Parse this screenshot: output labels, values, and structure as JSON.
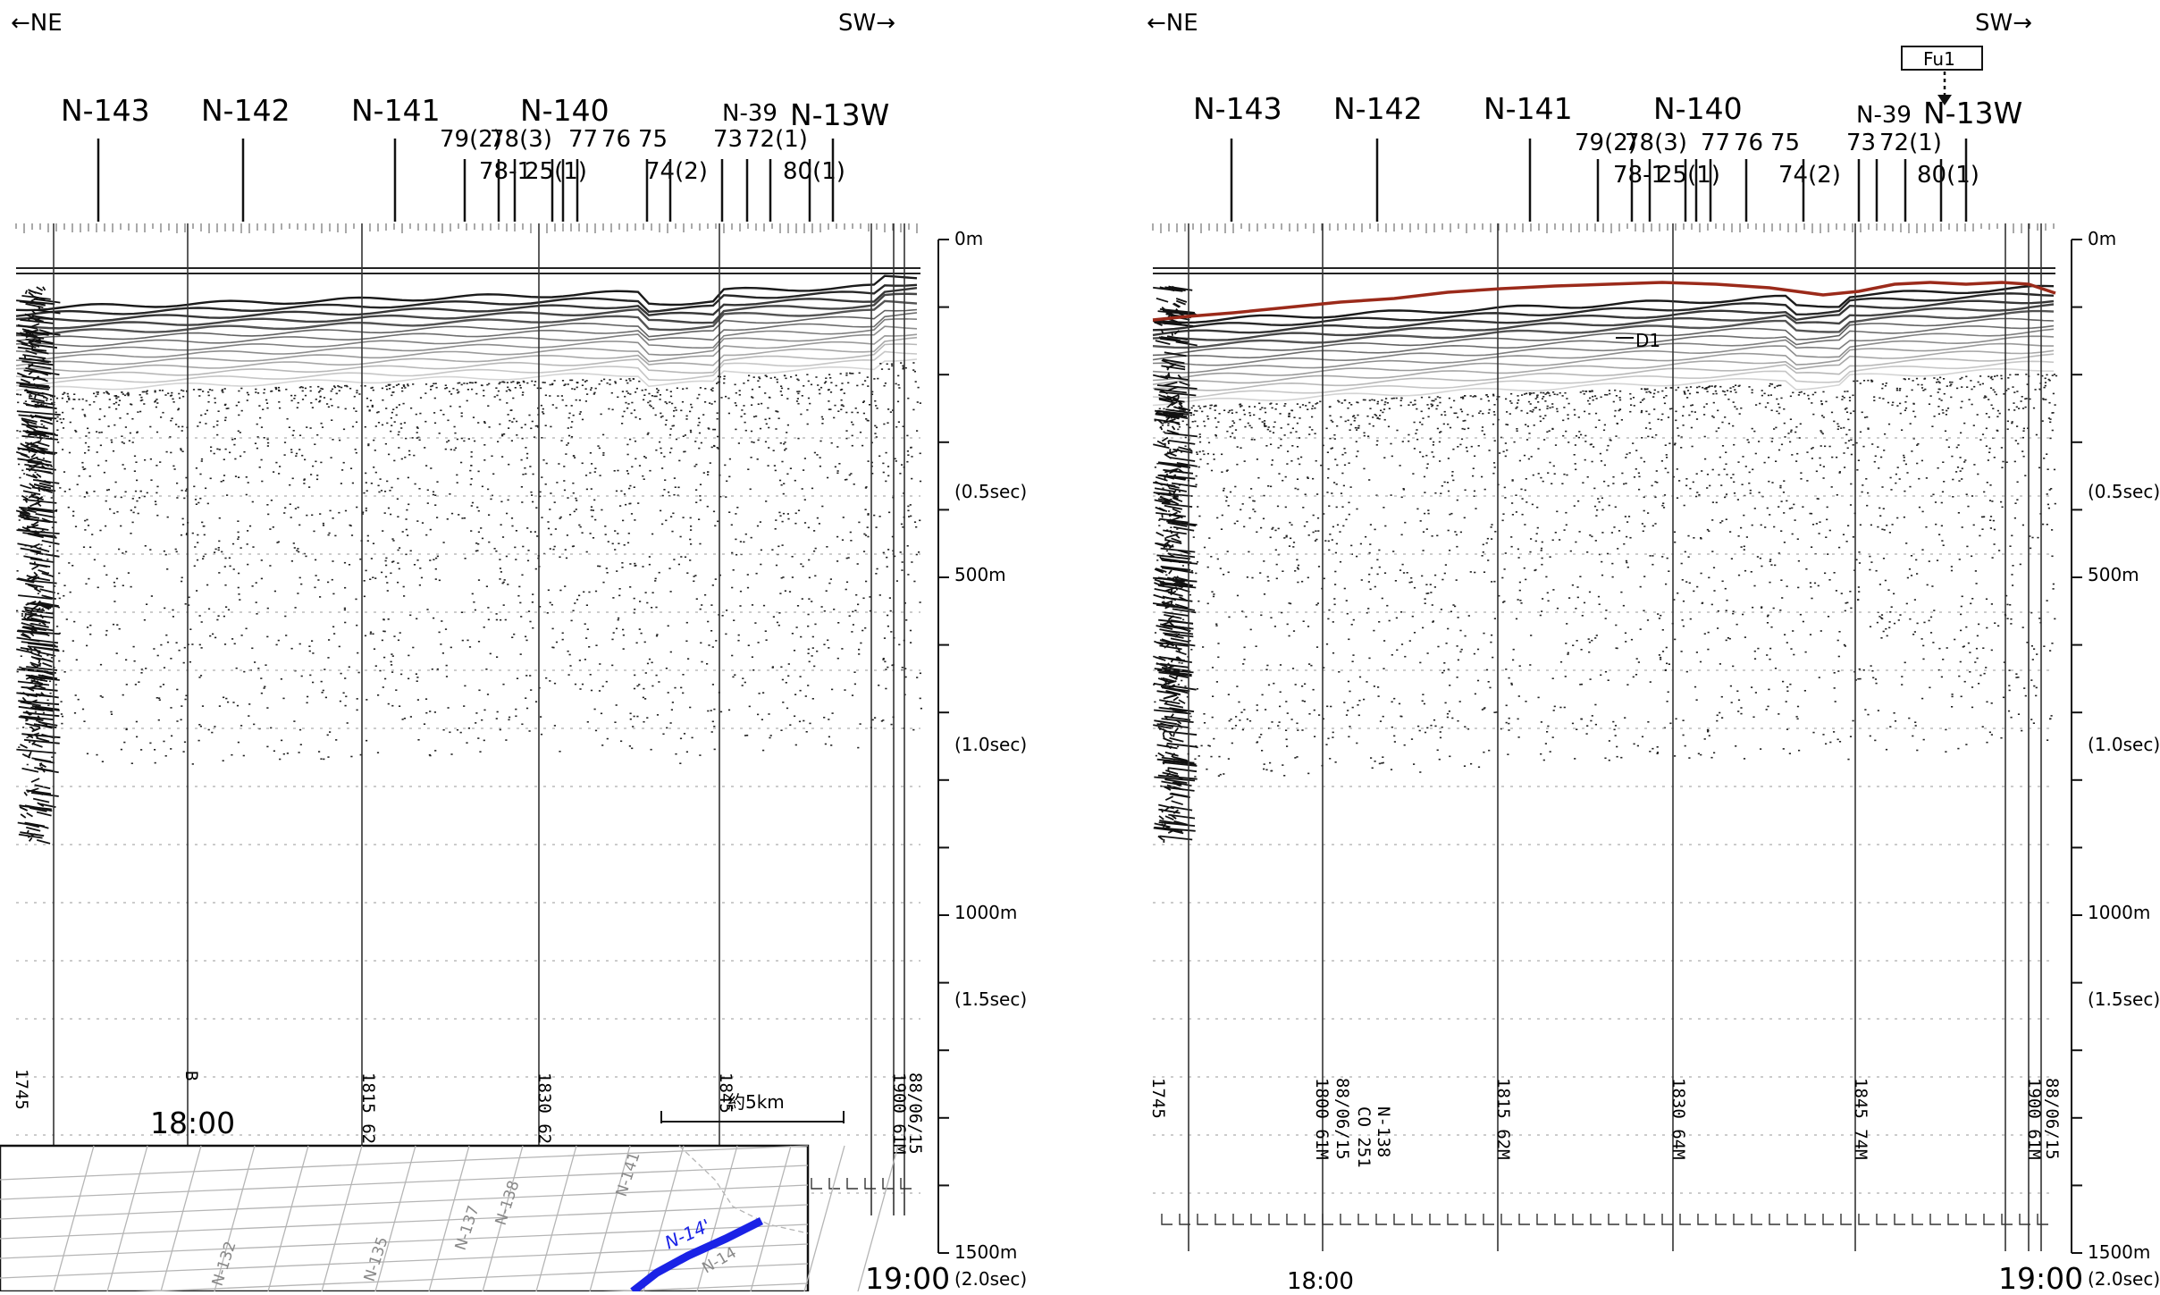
{
  "profiles": [
    {
      "id": "left",
      "direction_left": "←NE",
      "direction_right": "SW→",
      "main_crossings": [
        "N-143",
        "N-142",
        "N-141",
        "N-140",
        "N-39",
        "N-13W"
      ],
      "minor_upper": [
        "79(2)",
        "78(3)",
        "77",
        "76",
        "75",
        "73",
        "72(1)"
      ],
      "minor_lower": [
        "78-1",
        "25(1)",
        "74(2)",
        "80(1)"
      ],
      "time_start": "18:00",
      "time_end": "19:00",
      "scale_bar_label": "約5km",
      "depth_labels": {
        "d0": "0m",
        "d05": "(0.5sec)",
        "d500": "500m",
        "d10": "(1.0sec)",
        "d1000": "1000m",
        "d15": "(1.5sec)",
        "d1500": "1500m",
        "d20": "(2.0sec)"
      },
      "record_annotations": [
        "1745",
        "B",
        "1815 62",
        "1830 62",
        "1845",
        "1900 61M",
        "88/06/15"
      ],
      "inset_map": {
        "highlighted_line": "N-14'",
        "line_color": "#1a22e6",
        "minor_labels": [
          "N-141",
          "N-138",
          "N-137",
          "N-135",
          "N-132",
          "N-14"
        ]
      }
    },
    {
      "id": "right",
      "direction_left": "←NE",
      "direction_right": "SW→",
      "main_crossings": [
        "N-143",
        "N-142",
        "N-141",
        "N-140",
        "N-39",
        "N-13W"
      ],
      "minor_upper": [
        "79(2)",
        "78(3)",
        "77",
        "76",
        "75",
        "73",
        "72(1)"
      ],
      "minor_lower": [
        "78-1",
        "25(1)",
        "74(2)",
        "80(1)"
      ],
      "fault_label": "Fu1",
      "reflector_label": "D1",
      "time_start": "18:00",
      "time_end": "19:00",
      "depth_labels": {
        "d0": "0m",
        "d05": "(0.5sec)",
        "d500": "500m",
        "d10": "(1.0sec)",
        "d1000": "1000m",
        "d15": "(1.5sec)",
        "d1500": "1500m",
        "d20": "(2.0sec)"
      },
      "record_annotations": [
        "1745",
        "1800 61M",
        "88/06/15",
        "CO 251",
        "N-138",
        "1815 62M",
        "1830 64M",
        "1845 74M",
        "1900 61M",
        "88/06/15"
      ],
      "interpretation_color": "#9b2a1a"
    }
  ]
}
